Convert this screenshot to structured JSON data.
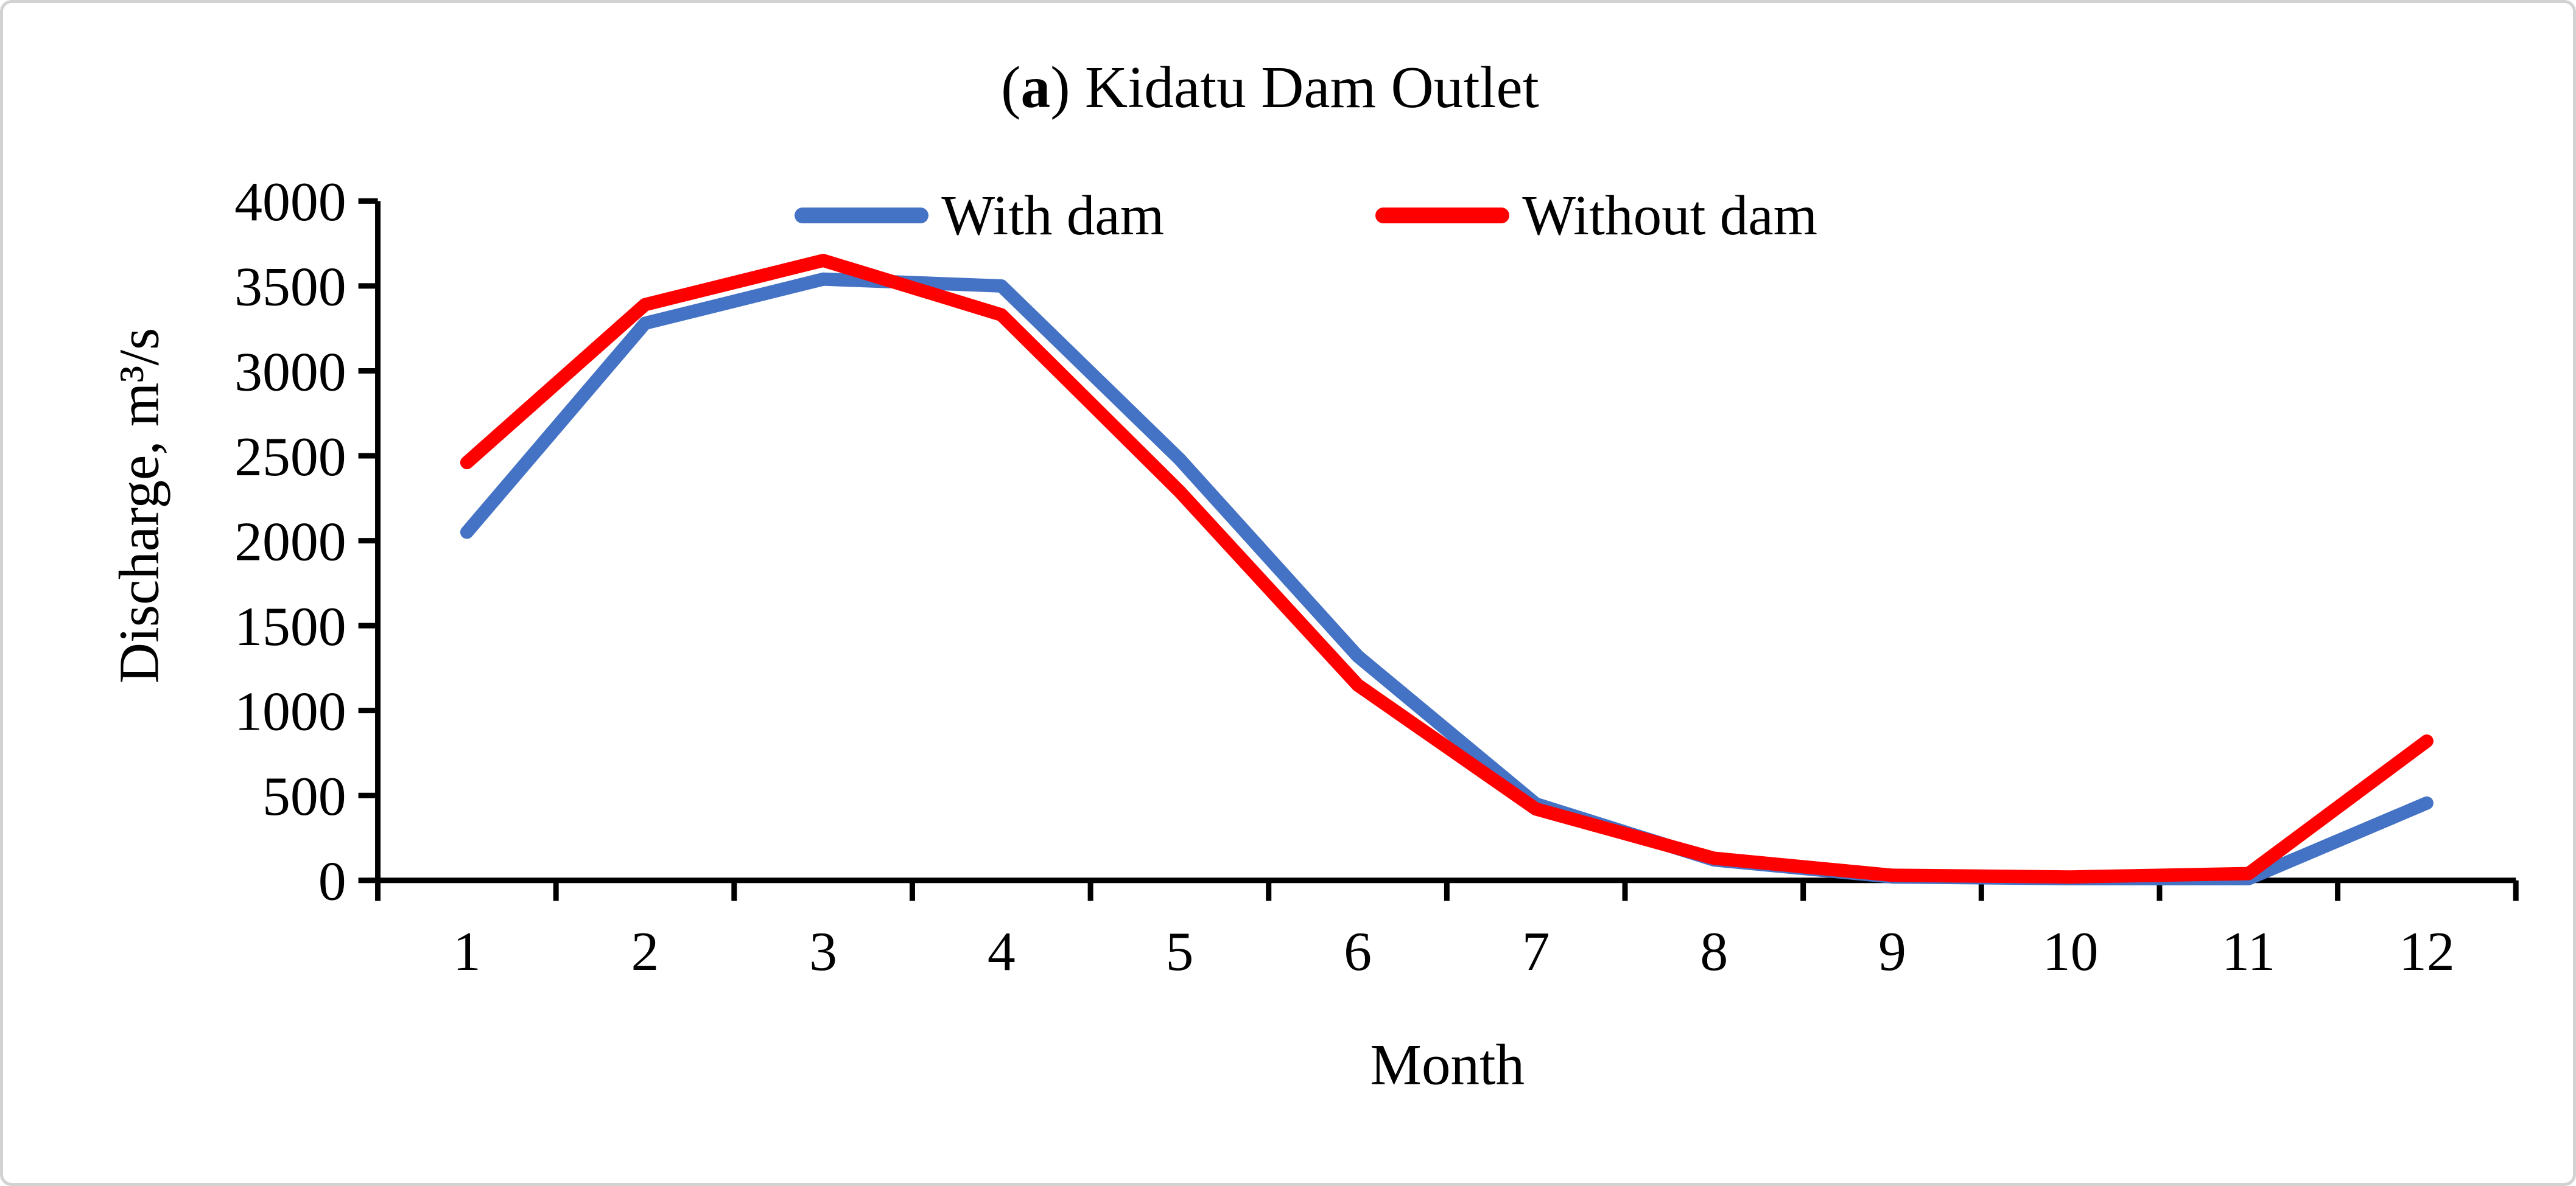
{
  "figure": {
    "title": {
      "open": "(",
      "letter": "a",
      "rest": ") Kidatu Dam Outlet"
    },
    "x_axis_label": "Month",
    "y_axis_label": "Discharge, m³/s"
  },
  "legend": {
    "items": [
      {
        "label": "With dam",
        "color": "#4472C4"
      },
      {
        "label": "Without dam",
        "color": "#FF0000"
      }
    ]
  },
  "chart_data": {
    "type": "line",
    "title": "(a) Kidatu Dam Outlet",
    "xlabel": "Month",
    "ylabel": "Discharge, m³/s",
    "x": [
      1,
      2,
      3,
      4,
      5,
      6,
      7,
      8,
      9,
      10,
      11,
      12
    ],
    "yticks": [
      0,
      500,
      1000,
      1500,
      2000,
      2500,
      3000,
      3500,
      4000
    ],
    "ylim": [
      0,
      4000
    ],
    "grid": false,
    "legend_position": "top-center",
    "series": [
      {
        "name": "With dam",
        "color": "#4472C4",
        "values": [
          2050,
          3280,
          3540,
          3500,
          2480,
          1320,
          450,
          120,
          20,
          10,
          10,
          455
        ]
      },
      {
        "name": "Without dam",
        "color": "#FF0000",
        "values": [
          2460,
          3390,
          3650,
          3330,
          2290,
          1150,
          420,
          130,
          30,
          20,
          40,
          820
        ]
      }
    ],
    "axis_color": "#000000",
    "line_width": 22
  }
}
